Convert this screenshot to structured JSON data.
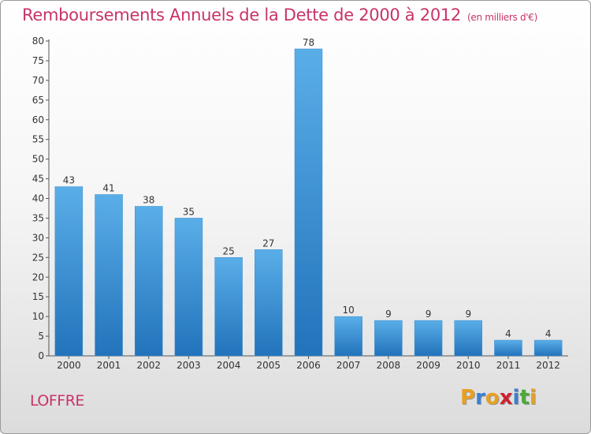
{
  "title": "Remboursements Annuels de la Dette de 2000 à 2012",
  "subtitle": "(en milliers d'€)",
  "commune": "LOFFRE",
  "logo": {
    "letters": [
      "P",
      "r",
      "o",
      "x",
      "i",
      "t",
      "i"
    ],
    "colors": [
      "#e8a020",
      "#3a7fd0",
      "#e8a020",
      "#d02030",
      "#3a7fd0",
      "#4aaa3a",
      "#e8a020"
    ]
  },
  "colors": {
    "title": "#c8336a",
    "bar_top": "#5aaee8",
    "bar_bottom": "#2273bb"
  },
  "chart_data": {
    "type": "bar",
    "title": "Remboursements Annuels de la Dette de 2000 à 2012",
    "subtitle": "(en milliers d'€)",
    "categories": [
      "2000",
      "2001",
      "2002",
      "2003",
      "2004",
      "2005",
      "2006",
      "2007",
      "2008",
      "2009",
      "2010",
      "2011",
      "2012"
    ],
    "values": [
      43,
      41,
      38,
      35,
      25,
      27,
      78,
      10,
      9,
      9,
      9,
      4,
      4
    ],
    "ylim": [
      0,
      80
    ],
    "yticks": [
      0,
      5,
      10,
      15,
      20,
      25,
      30,
      35,
      40,
      45,
      50,
      55,
      60,
      65,
      70,
      75,
      80
    ],
    "grid": false,
    "legend": "none"
  }
}
